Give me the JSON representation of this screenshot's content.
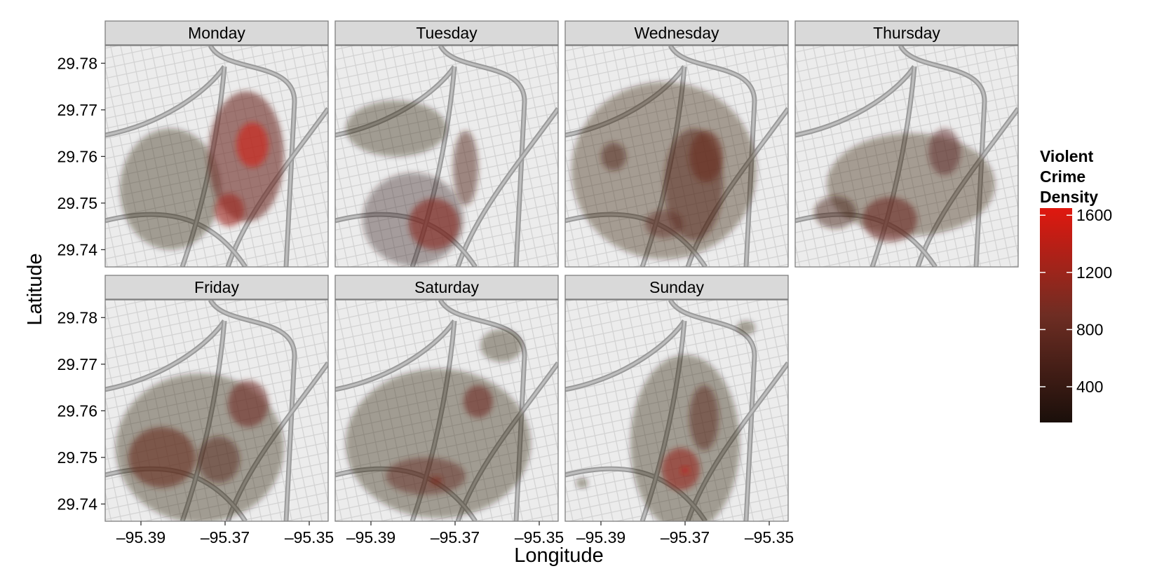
{
  "chart_data": {
    "type": "heatmap",
    "facet_by": "day of week",
    "facet_layout": "4 columns, 2 rows",
    "xlabel": "Longitude",
    "ylabel": "Latitude",
    "x_ticks": [
      -95.39,
      -95.37,
      -95.35
    ],
    "x_tick_labels": [
      "–95.39",
      "–95.37",
      "–95.35"
    ],
    "y_ticks": [
      29.74,
      29.75,
      29.76,
      29.77,
      29.78
    ],
    "y_tick_labels": [
      "29.74",
      "29.75",
      "29.76",
      "29.77",
      "29.78"
    ],
    "xlim": [
      -95.3985,
      -95.3455
    ],
    "ylim": [
      29.7363,
      29.7838
    ],
    "basemap": "grayscale street map",
    "grid": false,
    "legend": {
      "title_lines": [
        "Violent",
        "Crime",
        "Density"
      ],
      "position": "right",
      "ticks": [
        400,
        800,
        1200,
        1600
      ],
      "tick_labels": [
        "400",
        "800",
        "1200",
        "1600"
      ],
      "range": [
        150,
        1650
      ],
      "low_color": "#1a0f0a",
      "high_color": "#e0180f"
    },
    "panels": [
      {
        "label": "Monday",
        "hotspots": [
          {
            "lon": -95.383,
            "lat": 29.753,
            "density": 260,
            "slon": 0.012,
            "slat": 0.013
          },
          {
            "lon": -95.365,
            "lat": 29.76,
            "density": 900,
            "slon": 0.009,
            "slat": 0.014
          },
          {
            "lon": -95.3635,
            "lat": 29.7625,
            "density": 1550,
            "slon": 0.0038,
            "slat": 0.0048
          },
          {
            "lon": -95.369,
            "lat": 29.7485,
            "density": 1200,
            "slon": 0.0035,
            "slat": 0.0035
          }
        ]
      },
      {
        "label": "Tuesday",
        "hotspots": [
          {
            "lon": -95.38,
            "lat": 29.7465,
            "density": 380,
            "slon": 0.012,
            "slat": 0.01
          },
          {
            "lon": -95.375,
            "lat": 29.7455,
            "density": 1050,
            "slon": 0.006,
            "slat": 0.0055
          },
          {
            "lon": -95.3675,
            "lat": 29.7575,
            "density": 620,
            "slon": 0.003,
            "slat": 0.008
          },
          {
            "lon": -95.384,
            "lat": 29.766,
            "density": 220,
            "slon": 0.012,
            "slat": 0.006
          }
        ]
      },
      {
        "label": "Wednesday",
        "hotspots": [
          {
            "lon": -95.375,
            "lat": 29.757,
            "density": 330,
            "slon": 0.022,
            "slat": 0.019
          },
          {
            "lon": -95.368,
            "lat": 29.754,
            "density": 650,
            "slon": 0.007,
            "slat": 0.012
          },
          {
            "lon": -95.387,
            "lat": 29.76,
            "density": 620,
            "slon": 0.003,
            "slat": 0.003
          },
          {
            "lon": -95.365,
            "lat": 29.76,
            "density": 850,
            "slon": 0.004,
            "slat": 0.0055
          },
          {
            "lon": -95.375,
            "lat": 29.7455,
            "density": 750,
            "slon": 0.0045,
            "slat": 0.003
          }
        ]
      },
      {
        "label": "Thursday",
        "hotspots": [
          {
            "lon": -95.371,
            "lat": 29.754,
            "density": 320,
            "slon": 0.02,
            "slat": 0.011
          },
          {
            "lon": -95.376,
            "lat": 29.7465,
            "density": 880,
            "slon": 0.0065,
            "slat": 0.0048
          },
          {
            "lon": -95.363,
            "lat": 29.761,
            "density": 720,
            "slon": 0.0038,
            "slat": 0.005
          },
          {
            "lon": -95.389,
            "lat": 29.748,
            "density": 540,
            "slon": 0.005,
            "slat": 0.0035
          }
        ]
      },
      {
        "label": "Friday",
        "hotspots": [
          {
            "lon": -95.376,
            "lat": 29.752,
            "density": 280,
            "slon": 0.02,
            "slat": 0.016
          },
          {
            "lon": -95.385,
            "lat": 29.75,
            "density": 820,
            "slon": 0.008,
            "slat": 0.0065
          },
          {
            "lon": -95.3645,
            "lat": 29.7615,
            "density": 900,
            "slon": 0.0048,
            "slat": 0.005
          },
          {
            "lon": -95.3715,
            "lat": 29.7495,
            "density": 650,
            "slon": 0.005,
            "slat": 0.005
          }
        ]
      },
      {
        "label": "Saturday",
        "hotspots": [
          {
            "lon": -95.374,
            "lat": 29.753,
            "density": 260,
            "slon": 0.022,
            "slat": 0.016
          },
          {
            "lon": -95.377,
            "lat": 29.746,
            "density": 780,
            "slon": 0.0095,
            "slat": 0.004
          },
          {
            "lon": -95.3645,
            "lat": 29.762,
            "density": 900,
            "slon": 0.0035,
            "slat": 0.0035
          },
          {
            "lon": -95.3745,
            "lat": 29.745,
            "density": 1000,
            "slon": 0.0015,
            "slat": 0.001
          },
          {
            "lon": -95.359,
            "lat": 29.774,
            "density": 240,
            "slon": 0.005,
            "slat": 0.0035
          }
        ]
      },
      {
        "label": "Sunday",
        "hotspots": [
          {
            "lon": -95.37,
            "lat": 29.753,
            "density": 300,
            "slon": 0.013,
            "slat": 0.019
          },
          {
            "lon": -95.371,
            "lat": 29.7475,
            "density": 1150,
            "slon": 0.0045,
            "slat": 0.0045
          },
          {
            "lon": -95.37,
            "lat": 29.7472,
            "density": 1450,
            "slon": 0.001,
            "slat": 0.0008
          },
          {
            "lon": -95.3655,
            "lat": 29.7585,
            "density": 700,
            "slon": 0.0035,
            "slat": 0.007
          },
          {
            "lon": -95.3555,
            "lat": 29.7778,
            "density": 260,
            "slon": 0.0022,
            "slat": 0.0015
          },
          {
            "lon": -95.3945,
            "lat": 29.7445,
            "density": 220,
            "slon": 0.0014,
            "slat": 0.0011
          }
        ]
      }
    ]
  }
}
